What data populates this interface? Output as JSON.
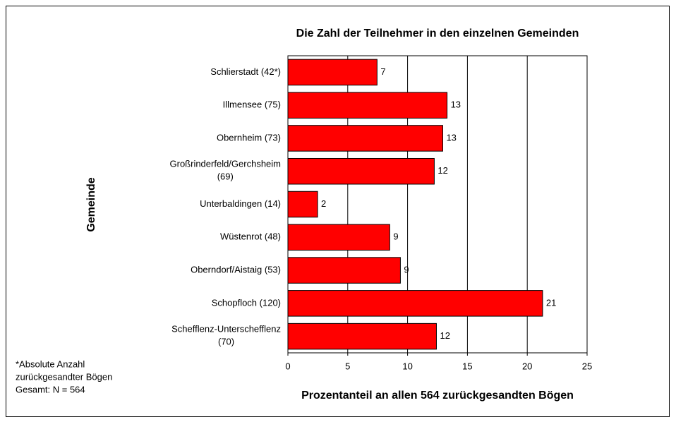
{
  "chart_data": {
    "type": "bar",
    "orientation": "horizontal",
    "title": "Die Zahl der Teilnehmer in den einzelnen Gemeinden",
    "x_label": "Prozentanteil  an allen 564 zurückgesandten Bögen",
    "y_label": "Gemeinde",
    "footnote": [
      "*Absolute Anzahl",
      "zurückgesandter Bögen",
      "Gesamt:  N = 564"
    ],
    "categories": [
      "Schlierstadt (42*)",
      "Illmensee (75)",
      "Obernheim (73)",
      "Großrinderfeld/Gerchsheim (69)",
      "Unterbaldingen (14)",
      "Wüstenrot (48)",
      "Oberndorf/Aistaig (53)",
      "Schopfloch (120)",
      "Schefflenz-Unterschefflenz (70)"
    ],
    "values": [
      7.45,
      13.3,
      12.94,
      12.23,
      2.48,
      8.51,
      9.4,
      21.28,
      12.41
    ],
    "value_labels": [
      "7",
      "13",
      "13",
      "12",
      "2",
      "9",
      "9",
      "21",
      "12"
    ],
    "color": "#ff0000",
    "xlim": [
      0,
      25
    ],
    "xticks": [
      0,
      5,
      10,
      15,
      20,
      25
    ],
    "grid": true
  }
}
